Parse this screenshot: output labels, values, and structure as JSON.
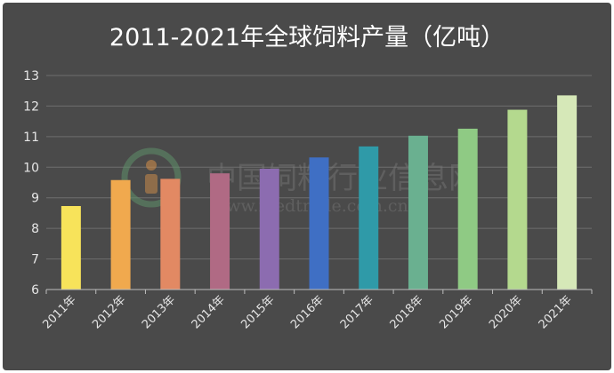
{
  "colors": {
    "background": "#4a4a4a",
    "gridline": "#6e6e6e",
    "axis": "#bdbdbd",
    "text": "#e6e6e6"
  },
  "watermark": {
    "line1": "中国饲料行业信息网",
    "line2": "www.feedtrade.com.cn"
  },
  "chart_data": {
    "type": "bar",
    "title": "2011-2021年全球饲料产量（亿吨）",
    "xlabel": "",
    "ylabel": "",
    "ylim": [
      6,
      13
    ],
    "yticks": [
      6,
      7,
      8,
      9,
      10,
      11,
      12,
      13
    ],
    "grid": true,
    "categories": [
      "2011年",
      "2012年",
      "2013年",
      "2014年",
      "2015年",
      "2016年",
      "2017年",
      "2018年",
      "2019年",
      "2020年",
      "2021年"
    ],
    "values": [
      8.73,
      9.58,
      9.62,
      9.8,
      9.95,
      10.32,
      10.68,
      11.03,
      11.26,
      11.88,
      12.35
    ],
    "bar_colors": [
      "#f7e35a",
      "#f0a94e",
      "#e28963",
      "#b06a84",
      "#8c6cb0",
      "#3f6fc4",
      "#2f9aa8",
      "#6ab090",
      "#8fca84",
      "#b4d98e",
      "#d6e8b8"
    ]
  }
}
